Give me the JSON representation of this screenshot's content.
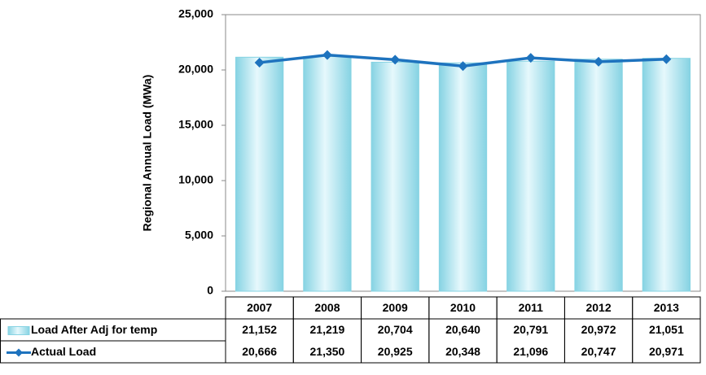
{
  "chart_data": {
    "type": "bar",
    "y_label": "Regional Annual Load (MWa)",
    "categories": [
      "2007",
      "2008",
      "2009",
      "2010",
      "2011",
      "2012",
      "2013"
    ],
    "series": [
      {
        "name": "Load After Adj for temp",
        "type": "bar",
        "color": "#86d3e3",
        "values": [
          21152,
          21219,
          20704,
          20640,
          20791,
          20972,
          21051
        ],
        "value_labels": [
          "21,152",
          "21,219",
          "20,704",
          "20,640",
          "20,791",
          "20,972",
          "21,051"
        ]
      },
      {
        "name": "Actual Load",
        "type": "line",
        "color": "#1e73be",
        "values": [
          20666,
          21350,
          20925,
          20348,
          21096,
          20747,
          20971
        ],
        "value_labels": [
          "20,666",
          "21,350",
          "20,925",
          "20,348",
          "21,096",
          "20,747",
          "20,971"
        ]
      }
    ],
    "ylim": [
      0,
      25000
    ],
    "yticks": [
      {
        "value": 0,
        "label": "0"
      },
      {
        "value": 5000,
        "label": "5,000"
      },
      {
        "value": 10000,
        "label": "10,000"
      },
      {
        "value": 15000,
        "label": "15,000"
      },
      {
        "value": 20000,
        "label": "20,000"
      },
      {
        "value": 25000,
        "label": "25,000"
      }
    ],
    "data_table": true
  }
}
